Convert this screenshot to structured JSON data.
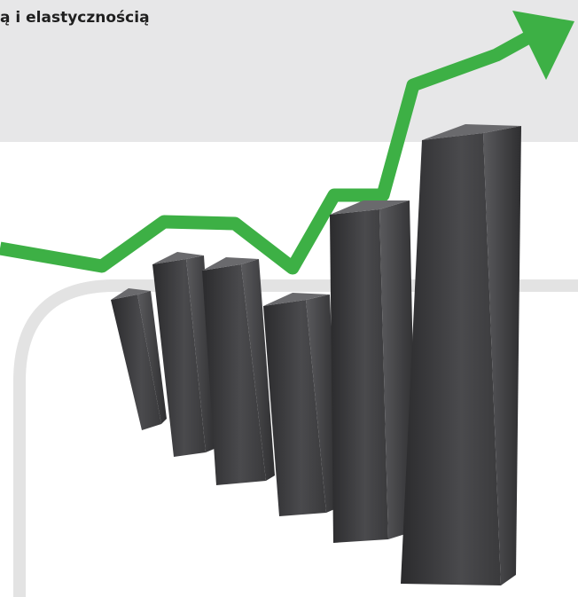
{
  "header": {
    "title": "ą i elastycznością"
  }
}
